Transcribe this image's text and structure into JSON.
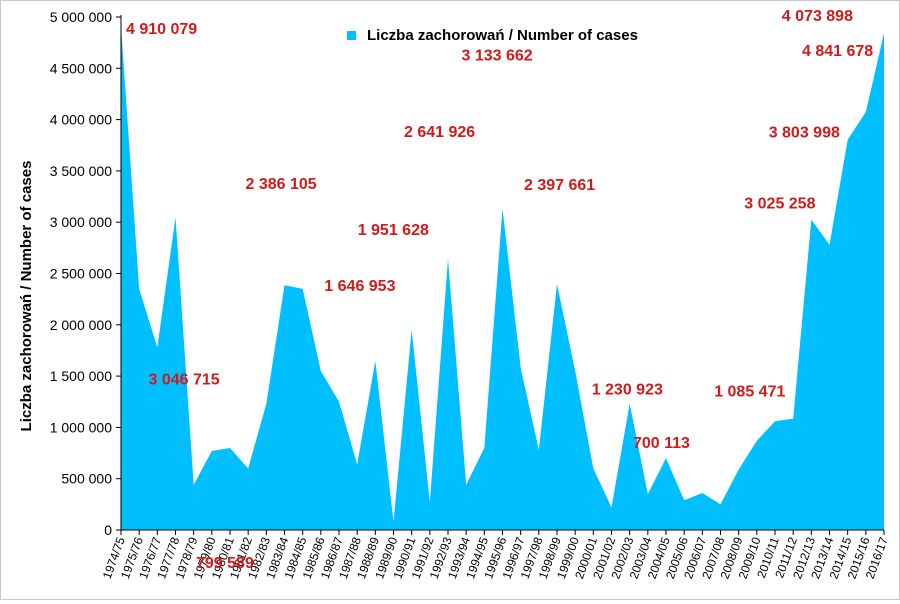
{
  "chart_data": {
    "type": "area",
    "title": "",
    "ylabel": "Liczba zachorowań  /  Number of cases",
    "xlabel": "",
    "ylim": [
      0,
      5000000
    ],
    "y_ticks": [
      0,
      500000,
      1000000,
      1500000,
      2000000,
      2500000,
      3000000,
      3500000,
      4000000,
      4500000,
      5000000
    ],
    "y_tick_labels": [
      "0",
      "500 000",
      "1 000 000",
      "1 500 000",
      "2 000 000",
      "2 500 000",
      "3 000 000",
      "3 500 000",
      "4 000 000",
      "4 500 000",
      "5 000 000"
    ],
    "grid": false,
    "legend_position": "top-center",
    "categories": [
      "1974/75",
      "1975/76",
      "1976/77",
      "1977/78",
      "1978/79",
      "1979/80",
      "1980/81",
      "1981/82",
      "1982/83",
      "1983/84",
      "1984/85",
      "1985/86",
      "1986/87",
      "1987/88",
      "1988/89",
      "1989/90",
      "1990/91",
      "1991/92",
      "1992/93",
      "1993/94",
      "1994/95",
      "1995/96",
      "1996/97",
      "1997/98",
      "1998/99",
      "1999/00",
      "2000/01",
      "2001/02",
      "2002/03",
      "2003/04",
      "2004/05",
      "2005/06",
      "2006/07",
      "2007/08",
      "2008/09",
      "2009/10",
      "2010/11",
      "2011/12",
      "2012/13",
      "2013/14",
      "2014/15",
      "2015/16",
      "2016/17"
    ],
    "series": [
      {
        "name": "Liczba zachorowań / Number of cases",
        "color": "#00bfff",
        "values": [
          4910079,
          2350000,
          1780000,
          3046715,
          440000,
          770000,
          799589,
          600000,
          1230000,
          2386105,
          2350000,
          1550000,
          1250000,
          640000,
          1646953,
          80000,
          1951628,
          270000,
          2641926,
          440000,
          800000,
          3133662,
          1580000,
          780000,
          2397661,
          1550000,
          600000,
          220000,
          1230923,
          350000,
          700113,
          290000,
          360000,
          250000,
          590000,
          870000,
          1060000,
          1085471,
          3025258,
          2780000,
          3803998,
          4073898,
          4841678
        ]
      }
    ],
    "data_labels": [
      {
        "category": "1974/75",
        "text": "4 910 079"
      },
      {
        "category": "1977/78",
        "text": "3 046 715"
      },
      {
        "category": "1980/81",
        "text": "799 589"
      },
      {
        "category": "1983/84",
        "text": "2 386 105"
      },
      {
        "category": "1988/89",
        "text": "1 646 953"
      },
      {
        "category": "1990/91",
        "text": "1 951 628"
      },
      {
        "category": "1992/93",
        "text": "2 641 926"
      },
      {
        "category": "1995/96",
        "text": "3 133 662"
      },
      {
        "category": "1998/99",
        "text": "2 397 661"
      },
      {
        "category": "2002/03",
        "text": "1 230 923"
      },
      {
        "category": "2004/05",
        "text": "700 113"
      },
      {
        "category": "2011/12",
        "text": "1 085 471"
      },
      {
        "category": "2012/13",
        "text": "3 025 258"
      },
      {
        "category": "2014/15",
        "text": "3 803 998"
      },
      {
        "category": "2015/16",
        "text": "4 073 898"
      },
      {
        "category": "2016/17",
        "text": "4 841 678"
      }
    ],
    "label_color": "#d11a1a"
  }
}
